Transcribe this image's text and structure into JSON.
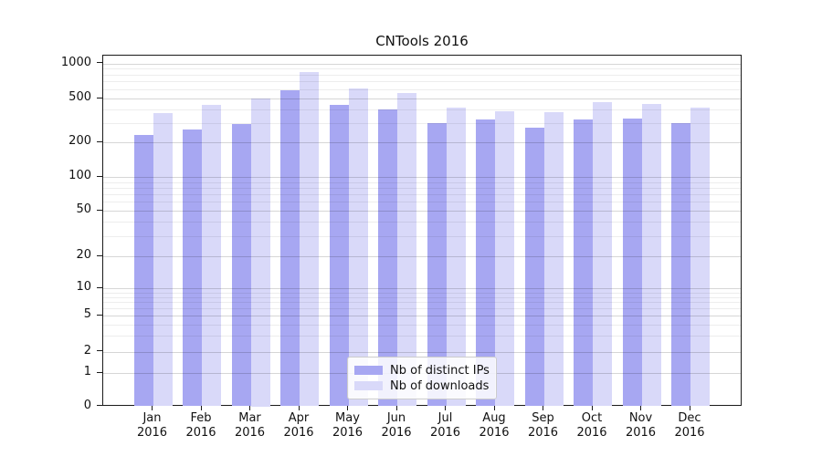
{
  "title": "CNTools 2016",
  "chart_data": {
    "type": "bar",
    "title": "CNTools 2016",
    "months": [
      "Jan",
      "Feb",
      "Mar",
      "Apr",
      "May",
      "Jun",
      "Jul",
      "Aug",
      "Sep",
      "Oct",
      "Nov",
      "Dec"
    ],
    "year": "2016",
    "categories": [
      "Jan 2016",
      "Feb 2016",
      "Mar 2016",
      "Apr 2016",
      "May 2016",
      "Jun 2016",
      "Jul 2016",
      "Aug 2016",
      "Sep 2016",
      "Oct 2016",
      "Nov 2016",
      "Dec 2016"
    ],
    "series": [
      {
        "name": "Nb of distinct IPs",
        "color": "#a7a7f2",
        "values": [
          235,
          260,
          295,
          585,
          440,
          395,
          300,
          320,
          270,
          320,
          330,
          300
        ]
      },
      {
        "name": "Nb of downloads",
        "color": "#d9d9f9",
        "values": [
          365,
          440,
          500,
          850,
          615,
          555,
          410,
          385,
          375,
          465,
          450,
          410
        ]
      }
    ],
    "yscale": "symlog",
    "y_ticks": [
      0,
      1,
      2,
      5,
      10,
      20,
      50,
      100,
      200,
      500,
      1000
    ],
    "ylim": [
      0,
      1150
    ],
    "grid": true,
    "legend_position": "lower center",
    "xlabel": "",
    "ylabel": ""
  }
}
